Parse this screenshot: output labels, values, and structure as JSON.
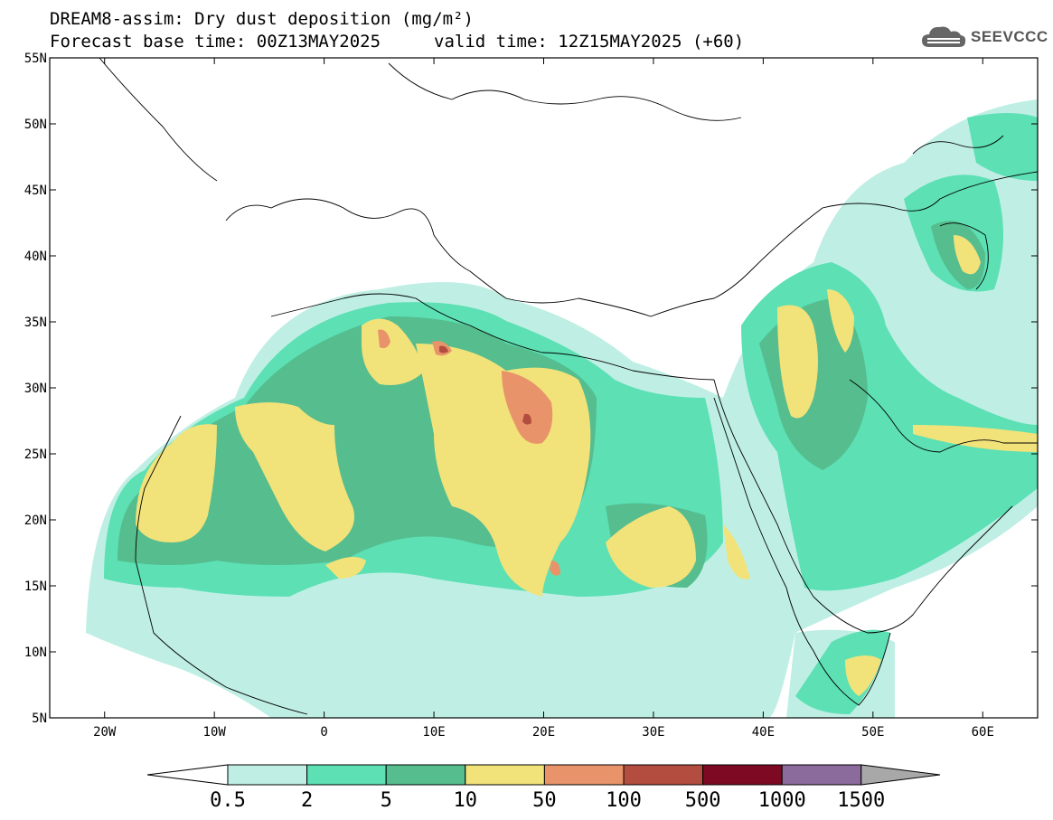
{
  "header": {
    "title_line1": "DREAM8-assim: Dry dust deposition (mg/m²)",
    "title_line2_left": "Forecast base time: 00Z13MAY2025",
    "title_line2_right": "valid time: 12Z15MAY2025 (+60)"
  },
  "logo": {
    "text": "SEEVCCC",
    "icon": "cloud-icon"
  },
  "map": {
    "projection": "lat-lon",
    "lon_range": [
      -25,
      65
    ],
    "lat_range": [
      5,
      55
    ],
    "lat_ticks": [
      {
        "value": 55,
        "label": "55N"
      },
      {
        "value": 50,
        "label": "50N"
      },
      {
        "value": 45,
        "label": "45N"
      },
      {
        "value": 40,
        "label": "40N"
      },
      {
        "value": 35,
        "label": "35N"
      },
      {
        "value": 30,
        "label": "30N"
      },
      {
        "value": 25,
        "label": "25N"
      },
      {
        "value": 20,
        "label": "20N"
      },
      {
        "value": 15,
        "label": "15N"
      },
      {
        "value": 10,
        "label": "10N"
      },
      {
        "value": 5,
        "label": "5N"
      }
    ],
    "lon_ticks": [
      {
        "value": -20,
        "label": "20W"
      },
      {
        "value": -10,
        "label": "10W"
      },
      {
        "value": 0,
        "label": "0"
      },
      {
        "value": 10,
        "label": "10E"
      },
      {
        "value": 20,
        "label": "20E"
      },
      {
        "value": 30,
        "label": "30E"
      },
      {
        "value": 40,
        "label": "40E"
      },
      {
        "value": 50,
        "label": "50E"
      },
      {
        "value": 60,
        "label": "60E"
      }
    ]
  },
  "colorbar": {
    "labels": [
      "0.5",
      "2",
      "5",
      "10",
      "50",
      "100",
      "500",
      "1000",
      "1500"
    ],
    "colors": [
      "#bfefe4",
      "#5ce0b4",
      "#55bd8e",
      "#f2e27a",
      "#e8936a",
      "#b34d3f",
      "#7d0a22",
      "#8b6a9c"
    ],
    "under_color": "#ffffff",
    "over_color": "#a8a8a8"
  }
}
